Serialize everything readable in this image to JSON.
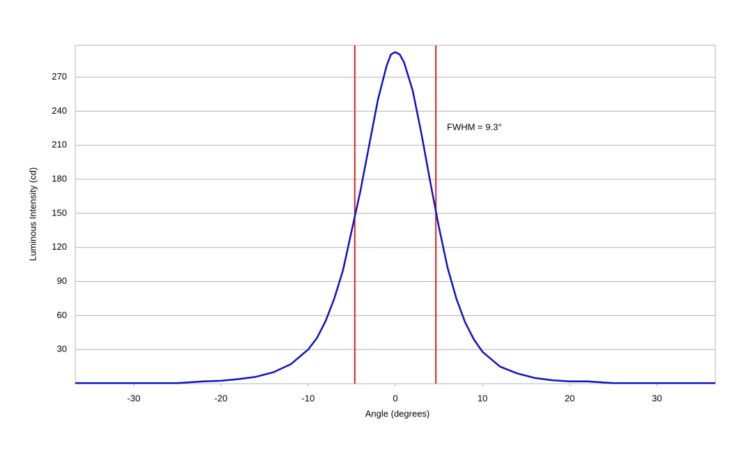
{
  "chart_data": {
    "type": "line",
    "x_label": "Angle (degrees)",
    "y_label": "Luminous Intensity (cd)",
    "x": [
      -36.7,
      -30,
      -25,
      -22,
      -20,
      -18,
      -16,
      -14,
      -12,
      -10,
      -9,
      -8,
      -7,
      -6,
      -5,
      -4,
      -3,
      -2,
      -1,
      -0.5,
      0,
      0.5,
      1,
      2,
      3,
      4,
      5,
      6,
      7,
      8,
      9,
      10,
      12,
      14,
      16,
      18,
      20,
      22,
      25,
      30,
      36.7
    ],
    "values": [
      0.5,
      0.5,
      0.5,
      2,
      2.5,
      4,
      6,
      10,
      17,
      30,
      40,
      55,
      75,
      100,
      135,
      170,
      210,
      250,
      280,
      290,
      292,
      290,
      283,
      258,
      220,
      178,
      138,
      102,
      75,
      54,
      39,
      28,
      15,
      9,
      5,
      3,
      2,
      2,
      0.5,
      0.5,
      0.5
    ],
    "color": "#1010c8",
    "vlines": [
      -4.65,
      4.65
    ],
    "vline_color": "#e02020",
    "annotation": "FWHM = 9.3°",
    "xlim": [
      -36.7,
      36.7
    ],
    "ylim": [
      0,
      298
    ],
    "xticks": [
      -30,
      -20,
      -10,
      0,
      10,
      20,
      30
    ],
    "yticks": [
      30,
      60,
      90,
      120,
      150,
      180,
      210,
      240,
      270
    ],
    "grid": true
  }
}
